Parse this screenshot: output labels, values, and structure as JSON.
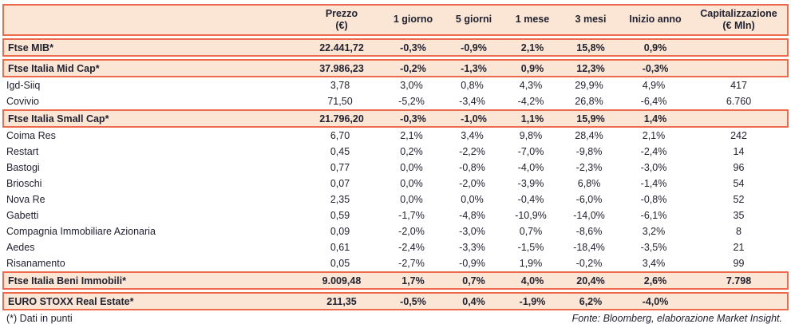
{
  "colors": {
    "accent": "#ee6a4d",
    "highlight_bg": "#fbe6d5",
    "text": "#222230"
  },
  "table": {
    "columns": [
      "",
      "Prezzo\n(€)",
      "1 giorno",
      "5 giorni",
      "1 mese",
      "3 mesi",
      "Inizio anno",
      "Capitalizzazione\n(€ Mln)"
    ],
    "rows": [
      {
        "name": "Ftse MIB*",
        "highlight": true,
        "values": [
          "22.441,72",
          "-0,3%",
          "-0,9%",
          "2,1%",
          "15,8%",
          "0,9%",
          ""
        ]
      },
      {
        "name": "Ftse Italia Mid Cap*",
        "highlight": true,
        "values": [
          "37.986,23",
          "-0,2%",
          "-1,3%",
          "0,9%",
          "12,3%",
          "-0,3%",
          ""
        ]
      },
      {
        "name": "Igd-Siiq",
        "highlight": false,
        "values": [
          "3,78",
          "3,0%",
          "0,8%",
          "4,3%",
          "29,9%",
          "4,9%",
          "417"
        ]
      },
      {
        "name": "Covivio",
        "highlight": false,
        "values": [
          "71,50",
          "-5,2%",
          "-3,4%",
          "-4,2%",
          "26,8%",
          "-6,4%",
          "6.760"
        ]
      },
      {
        "name": "Ftse Italia Small Cap*",
        "highlight": true,
        "values": [
          "21.796,20",
          "-0,3%",
          "-1,0%",
          "1,1%",
          "15,9%",
          "1,4%",
          ""
        ]
      },
      {
        "name": "Coima Res",
        "highlight": false,
        "values": [
          "6,70",
          "2,1%",
          "3,4%",
          "9,8%",
          "28,4%",
          "2,1%",
          "242"
        ]
      },
      {
        "name": "Restart",
        "highlight": false,
        "values": [
          "0,45",
          "0,2%",
          "-2,2%",
          "-7,0%",
          "-9,8%",
          "-2,4%",
          "14"
        ]
      },
      {
        "name": "Bastogi",
        "highlight": false,
        "values": [
          "0,77",
          "0,0%",
          "-0,8%",
          "-4,0%",
          "-2,3%",
          "-3,0%",
          "96"
        ]
      },
      {
        "name": "Brioschi",
        "highlight": false,
        "values": [
          "0,07",
          "0,0%",
          "-2,0%",
          "-3,9%",
          "6,8%",
          "-1,4%",
          "54"
        ]
      },
      {
        "name": "Nova Re",
        "highlight": false,
        "values": [
          "2,35",
          "0,0%",
          "0,0%",
          "-0,4%",
          "-6,0%",
          "-0,8%",
          "52"
        ]
      },
      {
        "name": "Gabetti",
        "highlight": false,
        "values": [
          "0,59",
          "-1,7%",
          "-4,8%",
          "-10,9%",
          "-14,0%",
          "-6,1%",
          "35"
        ]
      },
      {
        "name": "Compagnia Immobiliare Azionaria",
        "highlight": false,
        "values": [
          "0,09",
          "-2,0%",
          "-3,0%",
          "0,7%",
          "-8,6%",
          "3,2%",
          "8"
        ]
      },
      {
        "name": "Aedes",
        "highlight": false,
        "values": [
          "0,61",
          "-2,4%",
          "-3,3%",
          "-1,5%",
          "-18,4%",
          "-3,5%",
          "21"
        ]
      },
      {
        "name": "Risanamento",
        "highlight": false,
        "values": [
          "0,05",
          "-2,7%",
          "-0,9%",
          "1,9%",
          "-0,2%",
          "3,4%",
          "99"
        ]
      },
      {
        "name": "Ftse Italia Beni Immobili*",
        "highlight": true,
        "values": [
          "9.009,48",
          "1,7%",
          "0,7%",
          "4,0%",
          "20,4%",
          "2,6%",
          "7.798"
        ]
      },
      {
        "name": "EURO STOXX Real Estate*",
        "highlight": true,
        "values": [
          "211,35",
          "-0,5%",
          "0,4%",
          "-1,9%",
          "6,2%",
          "-4,0%",
          ""
        ]
      }
    ]
  },
  "footer": {
    "footnote": "(*) Dati in punti",
    "source": "Fonte: Bloomberg, elaborazione Market Insight."
  }
}
